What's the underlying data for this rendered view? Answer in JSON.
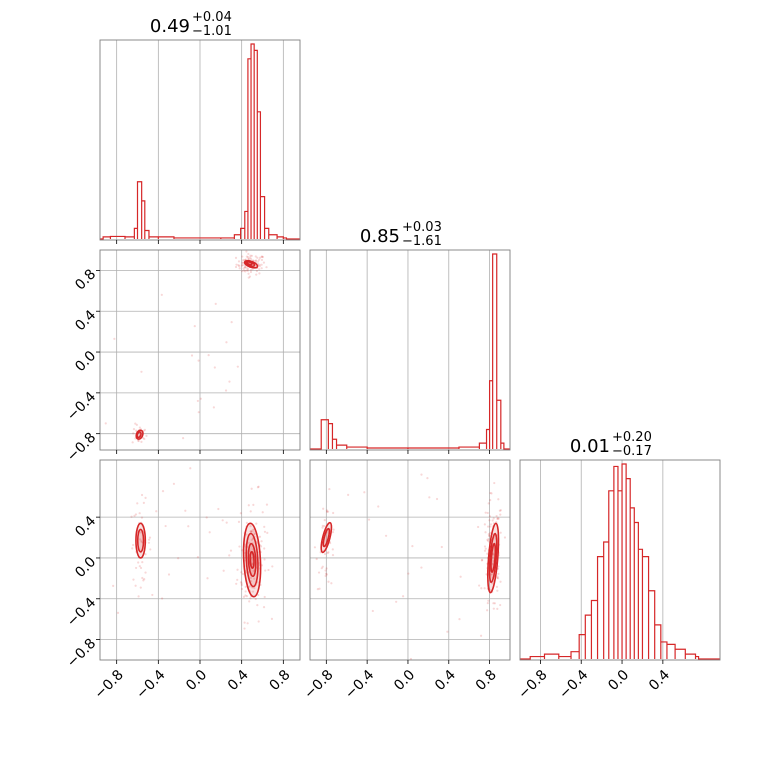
{
  "chart_data": {
    "type": "corner",
    "style": {
      "color": "#d62728",
      "grid": true,
      "grid_color": "#b0b0b0"
    },
    "params": [
      {
        "range": [
          -0.96,
          0.96
        ],
        "ticks": [
          -0.8,
          -0.4,
          0.0,
          0.4,
          0.8
        ],
        "title": {
          "median": "0.49",
          "plus": "+0.04",
          "minus": "−1.01"
        }
      },
      {
        "range": [
          -0.96,
          1.0
        ],
        "ticks": [
          -0.8,
          -0.4,
          0.0,
          0.4,
          0.8
        ],
        "title": {
          "median": "0.85",
          "plus": "+0.03",
          "minus": "−1.61"
        }
      },
      {
        "range": [
          -1.0,
          0.96
        ],
        "ticks": [
          -0.8,
          -0.4,
          0.0,
          0.4
        ],
        "title": {
          "median": "0.01",
          "plus": "+0.20",
          "minus": "−0.17"
        }
      }
    ],
    "tick_labels": {
      "-0.8": "−0.8",
      "-0.4": "−0.4",
      "0": "0.0",
      "0.4": "0.4",
      "0.8": "0.8"
    },
    "histograms": [
      {
        "param": 0,
        "bins": [
          [
            -0.93,
            0.01
          ],
          [
            -0.86,
            0.012
          ],
          [
            -0.72,
            0.01
          ],
          [
            -0.63,
            0.05
          ],
          [
            -0.6,
            0.27
          ],
          [
            -0.56,
            0.18
          ],
          [
            -0.53,
            0.04
          ],
          [
            -0.49,
            0.01
          ],
          [
            -0.4,
            0.01
          ],
          [
            -0.25,
            0.005
          ],
          [
            0.2,
            0.005
          ],
          [
            0.33,
            0.02
          ],
          [
            0.39,
            0.05
          ],
          [
            0.43,
            0.13
          ],
          [
            0.46,
            0.85
          ],
          [
            0.49,
            0.92
          ],
          [
            0.52,
            0.89
          ],
          [
            0.55,
            0.6
          ],
          [
            0.58,
            0.2
          ],
          [
            0.62,
            0.05
          ],
          [
            0.66,
            0.02
          ],
          [
            0.74,
            0.01
          ],
          [
            0.8,
            0.005
          ]
        ]
      },
      {
        "param": 1,
        "bins": [
          [
            -0.85,
            0.15
          ],
          [
            -0.78,
            0.13
          ],
          [
            -0.74,
            0.05
          ],
          [
            -0.7,
            0.02
          ],
          [
            -0.6,
            0.01
          ],
          [
            -0.4,
            0.005
          ],
          [
            0.0,
            0.005
          ],
          [
            0.5,
            0.01
          ],
          [
            0.7,
            0.03
          ],
          [
            0.77,
            0.1
          ],
          [
            0.8,
            0.35
          ],
          [
            0.83,
            1.0
          ],
          [
            0.87,
            0.25
          ],
          [
            0.91,
            0.03
          ]
        ]
      },
      {
        "param": 2,
        "bins": [
          [
            -0.9,
            0.01
          ],
          [
            -0.76,
            0.02
          ],
          [
            -0.62,
            0.01
          ],
          [
            -0.5,
            0.03
          ],
          [
            -0.42,
            0.1
          ],
          [
            -0.36,
            0.18
          ],
          [
            -0.3,
            0.24
          ],
          [
            -0.24,
            0.42
          ],
          [
            -0.18,
            0.48
          ],
          [
            -0.13,
            0.69
          ],
          [
            -0.08,
            0.79
          ],
          [
            -0.04,
            0.69
          ],
          [
            0.0,
            0.8
          ],
          [
            0.04,
            0.74
          ],
          [
            0.08,
            0.62
          ],
          [
            0.12,
            0.56
          ],
          [
            0.16,
            0.45
          ],
          [
            0.2,
            0.42
          ],
          [
            0.26,
            0.28
          ],
          [
            0.32,
            0.14
          ],
          [
            0.38,
            0.07
          ],
          [
            0.44,
            0.06
          ],
          [
            0.52,
            0.04
          ],
          [
            0.62,
            0.02
          ],
          [
            0.72,
            0.01
          ]
        ]
      }
    ],
    "contours": [
      {
        "x_param": 0,
        "y_param": 1,
        "levels": [
          {
            "cx": 0.49,
            "cy": 0.86,
            "rx": 0.065,
            "ry": 0.028,
            "tilt": -0.35
          },
          {
            "cx": 0.48,
            "cy": 0.865,
            "rx": 0.045,
            "ry": 0.02,
            "tilt": -0.35
          },
          {
            "cx": 0.475,
            "cy": 0.87,
            "rx": 0.025,
            "ry": 0.012,
            "tilt": -0.35
          },
          {
            "cx": -0.58,
            "cy": -0.81,
            "rx": 0.03,
            "ry": 0.045,
            "tilt": -0.4
          },
          {
            "cx": -0.585,
            "cy": -0.81,
            "rx": 0.017,
            "ry": 0.028,
            "tilt": -0.4
          }
        ]
      },
      {
        "x_param": 0,
        "y_param": 2,
        "levels": [
          {
            "cx": 0.5,
            "cy": -0.02,
            "rx": 0.08,
            "ry": 0.36,
            "tilt": 0.05
          },
          {
            "cx": 0.5,
            "cy": -0.02,
            "rx": 0.055,
            "ry": 0.26,
            "tilt": 0.05
          },
          {
            "cx": 0.5,
            "cy": -0.02,
            "rx": 0.035,
            "ry": 0.16,
            "tilt": 0.05
          },
          {
            "cx": 0.5,
            "cy": -0.02,
            "rx": 0.018,
            "ry": 0.08,
            "tilt": 0.05
          },
          {
            "cx": -0.57,
            "cy": 0.17,
            "rx": 0.045,
            "ry": 0.17,
            "tilt": 0.0
          },
          {
            "cx": -0.57,
            "cy": 0.17,
            "rx": 0.028,
            "ry": 0.11,
            "tilt": 0.0
          }
        ]
      },
      {
        "x_param": 1,
        "y_param": 2,
        "levels": [
          {
            "cx": 0.835,
            "cy": 0.0,
            "rx": 0.045,
            "ry": 0.34,
            "tilt": -0.08
          },
          {
            "cx": 0.835,
            "cy": 0.0,
            "rx": 0.03,
            "ry": 0.24,
            "tilt": -0.08
          },
          {
            "cx": 0.835,
            "cy": 0.0,
            "rx": 0.018,
            "ry": 0.14,
            "tilt": -0.08
          },
          {
            "cx": -0.8,
            "cy": 0.2,
            "rx": 0.035,
            "ry": 0.15,
            "tilt": -0.25
          },
          {
            "cx": -0.8,
            "cy": 0.2,
            "rx": 0.02,
            "ry": 0.09,
            "tilt": -0.25
          }
        ]
      }
    ],
    "scatter_clusters": [
      {
        "x_param": 0,
        "y_param": 1,
        "clusters": [
          {
            "cx": 0.49,
            "cy": 0.86,
            "sx": 0.07,
            "sy": 0.05,
            "n": 90
          },
          {
            "cx": -0.58,
            "cy": -0.81,
            "sx": 0.035,
            "sy": 0.05,
            "n": 25
          },
          {
            "cx": -0.2,
            "cy": 0.0,
            "sx": 0.45,
            "sy": 0.5,
            "n": 22
          }
        ]
      },
      {
        "x_param": 0,
        "y_param": 2,
        "clusters": [
          {
            "cx": 0.5,
            "cy": 0.0,
            "sx": 0.07,
            "sy": 0.3,
            "n": 140
          },
          {
            "cx": -0.57,
            "cy": 0.15,
            "sx": 0.05,
            "sy": 0.2,
            "n": 45
          },
          {
            "cx": -0.2,
            "cy": 0.0,
            "sx": 0.4,
            "sy": 0.45,
            "n": 22
          }
        ]
      },
      {
        "x_param": 1,
        "y_param": 2,
        "clusters": [
          {
            "cx": 0.83,
            "cy": 0.0,
            "sx": 0.05,
            "sy": 0.3,
            "n": 130
          },
          {
            "cx": -0.8,
            "cy": 0.15,
            "sx": 0.05,
            "sy": 0.22,
            "n": 40
          },
          {
            "cx": 0.0,
            "cy": 0.1,
            "sx": 0.45,
            "sy": 0.45,
            "n": 25
          }
        ]
      }
    ]
  }
}
